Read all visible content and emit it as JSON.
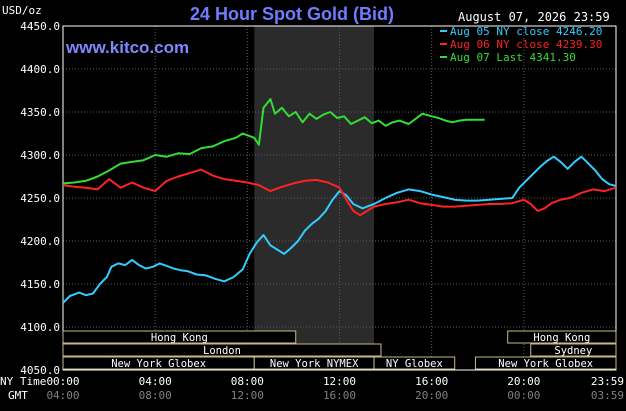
{
  "chart_data": {
    "type": "line",
    "title": "24 Hour Spot Gold (Bid)",
    "site": "www.kitco.com",
    "timestamp": "August 07, 2026 23:59",
    "ylabel": "USD/oz",
    "ylim": [
      4050,
      4450
    ],
    "yticks": [
      "4450.0",
      "4400.0",
      "4350.0",
      "4300.0",
      "4250.0",
      "4200.0",
      "4150.0",
      "4100.0",
      "4050.0"
    ],
    "x_ny_label": "NY Time",
    "x_gmt_label": "GMT",
    "x_ny_ticks": [
      "00:00",
      "04:00",
      "08:00",
      "12:00",
      "16:00",
      "20:00",
      "23:59"
    ],
    "x_gmt_ticks": [
      "04:00",
      "08:00",
      "12:00",
      "16:00",
      "20:00",
      "00:00",
      "03:59"
    ],
    "xlim_hours": [
      0,
      24
    ],
    "grid": true,
    "legend_position": "top-right",
    "shaded_region_hours": [
      8.3,
      13.5
    ],
    "series": [
      {
        "name": "Aug 05 NY close 4246.20",
        "color": "#33ccff",
        "x": [
          0,
          0.3,
          0.7,
          1,
          1.3,
          1.6,
          1.9,
          2.1,
          2.4,
          2.7,
          3,
          3.3,
          3.6,
          3.9,
          4.2,
          4.5,
          4.8,
          5.1,
          5.4,
          5.8,
          6.2,
          6.6,
          7,
          7.4,
          7.8,
          8.1,
          8.4,
          8.7,
          9,
          9.3,
          9.6,
          9.9,
          10.2,
          10.5,
          10.8,
          11.1,
          11.4,
          11.7,
          12,
          12.3,
          12.6,
          13,
          13.5,
          14,
          14.5,
          15,
          15.5,
          16,
          16.5,
          17,
          17.5,
          18,
          18.5,
          19,
          19.5,
          19.8,
          20.1,
          20.4,
          20.7,
          21,
          21.3,
          21.6,
          21.9,
          22.2,
          22.5,
          22.8,
          23.1,
          23.4,
          23.7,
          24
        ],
        "y": [
          4128,
          4136,
          4140,
          4137,
          4139,
          4150,
          4158,
          4170,
          4174,
          4172,
          4178,
          4172,
          4168,
          4170,
          4174,
          4171,
          4168,
          4166,
          4165,
          4161,
          4160,
          4156,
          4153,
          4158,
          4167,
          4185,
          4198,
          4207,
          4195,
          4190,
          4185,
          4192,
          4200,
          4212,
          4220,
          4226,
          4235,
          4248,
          4258,
          4253,
          4243,
          4238,
          4243,
          4250,
          4256,
          4260,
          4258,
          4254,
          4251,
          4248,
          4247,
          4247,
          4248,
          4249,
          4250,
          4262,
          4270,
          4278,
          4286,
          4293,
          4298,
          4292,
          4284,
          4292,
          4298,
          4290,
          4282,
          4272,
          4266,
          4264
        ]
      },
      {
        "name": "Aug 06 NY close 4239.30",
        "color": "#ff2222",
        "x": [
          0,
          0.5,
          1,
          1.5,
          2,
          2.5,
          3,
          3.5,
          4,
          4.5,
          5,
          5.5,
          6,
          6.5,
          7,
          7.5,
          8,
          8.5,
          9,
          9.5,
          10,
          10.5,
          11,
          11.5,
          12,
          12.3,
          12.6,
          12.9,
          13.2,
          13.5,
          14,
          14.5,
          15,
          15.5,
          16,
          16.5,
          17,
          17.5,
          18,
          18.5,
          19,
          19.5,
          20,
          20.3,
          20.6,
          20.9,
          21.2,
          21.6,
          22,
          22.5,
          23,
          23.5,
          24
        ],
        "y": [
          4265,
          4263,
          4262,
          4260,
          4272,
          4262,
          4268,
          4262,
          4258,
          4270,
          4275,
          4279,
          4283,
          4276,
          4272,
          4270,
          4268,
          4265,
          4258,
          4263,
          4267,
          4270,
          4271,
          4268,
          4262,
          4248,
          4235,
          4230,
          4235,
          4240,
          4243,
          4245,
          4248,
          4244,
          4242,
          4240,
          4240,
          4241,
          4242,
          4243,
          4243,
          4244,
          4248,
          4243,
          4235,
          4238,
          4244,
          4248,
          4250,
          4256,
          4260,
          4258,
          4262
        ]
      },
      {
        "name": "Aug 07 Last 4341.30",
        "color": "#33dd33",
        "x": [
          0,
          0.5,
          1,
          1.5,
          2,
          2.5,
          3,
          3.5,
          4,
          4.5,
          5,
          5.5,
          6,
          6.5,
          7,
          7.5,
          7.8,
          8.1,
          8.3,
          8.5,
          8.7,
          9,
          9.2,
          9.5,
          9.8,
          10.1,
          10.4,
          10.7,
          11,
          11.3,
          11.6,
          11.9,
          12.2,
          12.5,
          12.8,
          13.1,
          13.4,
          13.7,
          14,
          14.3,
          14.6,
          15,
          15.3,
          15.6,
          16,
          16.3,
          16.6,
          16.9,
          17.2,
          17.5,
          17.8,
          18,
          18.3
        ],
        "y": [
          4267,
          4268,
          4270,
          4275,
          4282,
          4290,
          4292,
          4294,
          4300,
          4298,
          4302,
          4301,
          4308,
          4310,
          4316,
          4320,
          4325,
          4322,
          4320,
          4312,
          4355,
          4365,
          4348,
          4355,
          4345,
          4350,
          4338,
          4348,
          4342,
          4347,
          4350,
          4343,
          4345,
          4336,
          4340,
          4344,
          4337,
          4340,
          4334,
          4338,
          4340,
          4336,
          4342,
          4348,
          4345,
          4343,
          4340,
          4338,
          4340,
          4341,
          4341,
          4341,
          4341
        ]
      }
    ],
    "sessions": [
      {
        "label": "Hong Kong",
        "start_h": 0,
        "end_h": 10.1
      },
      {
        "label": "Hong Kong",
        "start_h": 19.3,
        "end_h": 24
      },
      {
        "label": "London",
        "start_h": 0,
        "end_h": 13.8
      },
      {
        "label": "Sydney",
        "start_h": 20.3,
        "end_h": 24
      },
      {
        "label": "New York Globex",
        "start_h": 0,
        "end_h": 8.3
      },
      {
        "label": "New York NYMEX",
        "start_h": 8.3,
        "end_h": 13.5
      },
      {
        "label": "NY Globex",
        "start_h": 13.5,
        "end_h": 17.0
      },
      {
        "label": "New York Globex",
        "start_h": 17.9,
        "end_h": 24
      }
    ]
  }
}
